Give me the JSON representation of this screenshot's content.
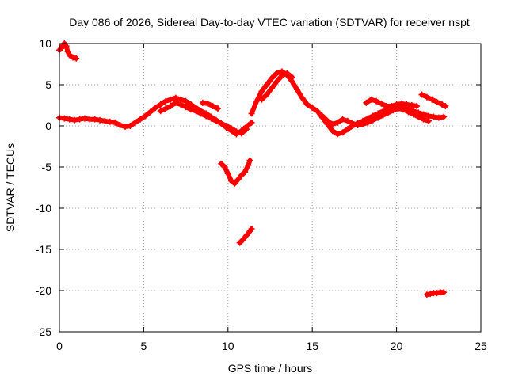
{
  "chart_data": {
    "type": "scatter",
    "title": "Day 086 of 2026, Sidereal Day-to-day VTEC variation (SDTVAR) for receiver nspt",
    "xlabel": "GPS time / hours",
    "ylabel": "SDTVAR / TECUs",
    "xlim": [
      0,
      25
    ],
    "ylim": [
      -25,
      10
    ],
    "xticks": [
      0,
      5,
      10,
      15,
      20,
      25
    ],
    "yticks": [
      -25,
      -20,
      -15,
      -10,
      -5,
      0,
      5,
      10
    ],
    "grid": true,
    "marker": "plus",
    "color": "#ff0000",
    "series": [
      {
        "name": "seg-start",
        "x": [
          0.0,
          0.1,
          0.2,
          0.3,
          0.4,
          0.5,
          0.6,
          0.8,
          1.0
        ],
        "y": [
          9.2,
          9.4,
          9.8,
          10.0,
          9.7,
          9.0,
          8.6,
          8.3,
          8.2
        ]
      },
      {
        "name": "seg-main-a",
        "x": [
          0.0,
          0.3,
          0.6,
          0.9,
          1.2,
          1.5,
          1.8,
          2.1,
          2.4,
          2.7,
          3.0,
          3.3,
          3.6,
          3.9,
          4.2,
          4.5,
          4.8,
          5.1,
          5.4,
          5.7,
          6.0,
          6.3,
          6.6,
          6.9,
          7.2,
          7.5,
          7.8,
          8.1,
          8.4,
          8.7,
          9.0,
          9.3,
          9.6,
          9.9,
          10.2,
          10.5,
          10.8,
          11.1,
          11.4
        ],
        "y": [
          1.0,
          0.9,
          0.8,
          0.7,
          0.8,
          0.9,
          0.8,
          0.8,
          0.7,
          0.6,
          0.5,
          0.4,
          0.1,
          -0.1,
          0.0,
          0.4,
          0.8,
          1.2,
          1.7,
          2.2,
          2.6,
          3.0,
          3.2,
          3.4,
          3.2,
          3.0,
          2.6,
          2.2,
          1.8,
          1.5,
          1.1,
          0.7,
          0.3,
          -0.2,
          -0.6,
          -1.0,
          -0.6,
          -0.1,
          0.4
        ]
      },
      {
        "name": "seg-main-b",
        "x": [
          6.0,
          6.3,
          6.6,
          6.9,
          7.2,
          7.5,
          7.8,
          8.1,
          8.4,
          8.7,
          9.0,
          9.3,
          9.6,
          9.9,
          10.2,
          10.5,
          10.8,
          11.1
        ],
        "y": [
          1.8,
          2.1,
          2.4,
          2.8,
          2.6,
          2.3,
          2.0,
          1.8,
          1.5,
          1.2,
          0.9,
          0.6,
          0.3,
          0.0,
          -0.3,
          -0.7,
          -0.9,
          -0.4
        ]
      },
      {
        "name": "seg-main-c",
        "x": [
          8.5,
          8.8,
          9.1,
          9.4
        ],
        "y": [
          2.8,
          2.7,
          2.4,
          2.1
        ]
      },
      {
        "name": "seg-rise",
        "x": [
          11.4,
          11.7,
          12.0,
          12.3,
          12.6,
          12.9,
          13.2,
          13.5,
          13.8,
          14.1,
          14.4,
          14.7,
          15.0,
          15.3,
          15.6,
          15.9,
          16.2,
          16.5,
          16.8,
          17.1,
          17.4,
          17.7,
          18.0,
          18.3,
          18.6,
          18.9,
          19.2,
          19.5,
          19.8,
          20.1,
          20.4,
          20.7,
          21.0,
          21.3,
          21.6,
          21.9,
          22.2,
          22.5,
          22.8
        ],
        "y": [
          1.5,
          3.0,
          4.2,
          5.0,
          5.8,
          6.4,
          6.6,
          6.2,
          5.4,
          4.4,
          3.4,
          2.6,
          2.2,
          1.8,
          1.0,
          0.2,
          -0.6,
          -1.0,
          -0.8,
          -0.4,
          0.0,
          0.3,
          0.6,
          0.9,
          1.2,
          1.5,
          1.8,
          2.0,
          2.1,
          2.2,
          2.1,
          2.0,
          1.8,
          1.6,
          1.4,
          1.2,
          1.1,
          1.0,
          1.1
        ]
      },
      {
        "name": "seg-rise-b",
        "x": [
          12.0,
          12.3,
          12.6,
          12.9,
          13.2,
          13.5,
          13.8
        ],
        "y": [
          3.2,
          3.8,
          4.6,
          5.4,
          6.1,
          6.4,
          5.9
        ]
      },
      {
        "name": "seg-late-b",
        "x": [
          15.6,
          15.9,
          16.2,
          16.5,
          16.8,
          17.1,
          17.4,
          17.7,
          18.0,
          18.3,
          18.6,
          18.9,
          19.2,
          19.5,
          19.8,
          20.1,
          20.4,
          20.7,
          21.0,
          21.3,
          21.6,
          21.9
        ],
        "y": [
          1.2,
          0.6,
          0.2,
          0.4,
          0.8,
          0.6,
          0.3,
          0.1,
          0.2,
          0.4,
          0.7,
          1.0,
          1.3,
          1.6,
          1.9,
          2.1,
          2.0,
          1.7,
          1.4,
          1.1,
          0.8,
          0.6
        ]
      },
      {
        "name": "seg-late-c",
        "x": [
          18.2,
          18.5,
          18.8,
          19.1,
          19.4,
          19.7,
          20.0,
          20.3,
          20.6,
          20.9,
          21.2
        ],
        "y": [
          2.8,
          3.2,
          3.0,
          2.7,
          2.4,
          2.4,
          2.6,
          2.7,
          2.6,
          2.5,
          2.4
        ]
      },
      {
        "name": "seg-late-d",
        "x": [
          21.5,
          21.8,
          22.1,
          22.4,
          22.7,
          22.9
        ],
        "y": [
          3.8,
          3.5,
          3.2,
          2.9,
          2.6,
          2.4
        ]
      },
      {
        "name": "seg-dip-1",
        "x": [
          9.6,
          9.8,
          10.0,
          10.2,
          10.4,
          10.6,
          10.8,
          11.0,
          11.2,
          11.3
        ],
        "y": [
          -4.6,
          -5.0,
          -5.8,
          -6.7,
          -7.0,
          -6.5,
          -6.0,
          -5.6,
          -4.8,
          -4.2
        ]
      },
      {
        "name": "seg-dip-2",
        "x": [
          10.7,
          10.9,
          11.1,
          11.3,
          11.4
        ],
        "y": [
          -14.2,
          -13.8,
          -13.3,
          -12.8,
          -12.5
        ]
      },
      {
        "name": "seg-dip-3",
        "x": [
          21.8,
          22.0,
          22.2,
          22.4,
          22.6,
          22.8
        ],
        "y": [
          -20.5,
          -20.4,
          -20.3,
          -20.3,
          -20.2,
          -20.2
        ]
      }
    ]
  }
}
